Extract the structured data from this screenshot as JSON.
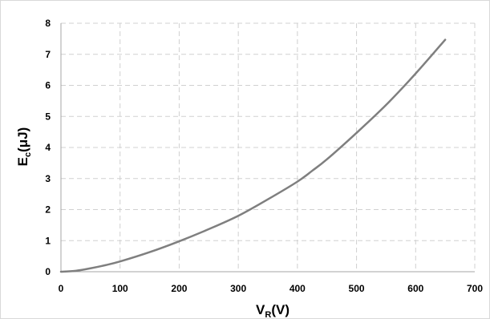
{
  "chart_data": {
    "type": "line",
    "xlabel": "V",
    "xlabel_sub": "R",
    "xlabel_suffix": "(V)",
    "ylabel": "E",
    "ylabel_sub": "c",
    "ylabel_suffix": "(μJ)",
    "xlim": [
      0,
      700
    ],
    "ylim": [
      0,
      8
    ],
    "x_ticks": [
      "0",
      "100",
      "200",
      "300",
      "400",
      "500",
      "600",
      "700"
    ],
    "y_ticks": [
      "0",
      "1",
      "2",
      "3",
      "4",
      "5",
      "6",
      "7",
      "8"
    ],
    "grid": true,
    "grid_style": "dashed",
    "legend": "none",
    "series": [
      {
        "color": "#7f7f7f",
        "x": [
          0,
          25,
          50,
          75,
          100,
          150,
          200,
          250,
          300,
          350,
          400,
          425,
          450,
          500,
          550,
          600,
          650
        ],
        "y": [
          0,
          0.03,
          0.11,
          0.21,
          0.33,
          0.63,
          0.98,
          1.37,
          1.8,
          2.33,
          2.9,
          3.25,
          3.62,
          4.47,
          5.37,
          6.38,
          7.47
        ]
      }
    ]
  }
}
